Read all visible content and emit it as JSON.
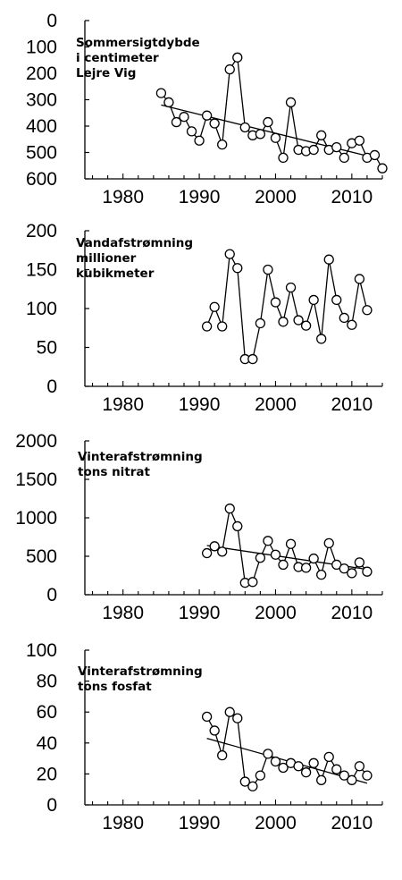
{
  "chart_data": [
    {
      "type": "scatter",
      "title": [
        "Sommersigtdybde",
        "i centimeter",
        "Lejre Vig"
      ],
      "xlim": [
        1975,
        2014
      ],
      "ylim": [
        0,
        600
      ],
      "y_inverted": true,
      "x_ticks": [
        1980,
        1990,
        2000,
        2010
      ],
      "y_ticks": [
        0,
        100,
        200,
        300,
        400,
        500,
        600
      ],
      "x": [
        1985,
        1986,
        1987,
        1988,
        1989,
        1990,
        1991,
        1992,
        1993,
        1994,
        1995,
        1996,
        1997,
        1998,
        1999,
        2000,
        2001,
        2002,
        2003,
        2004,
        2005,
        2006,
        2007,
        2008,
        2009,
        2010,
        2011,
        2012,
        2013,
        2014
      ],
      "values": [
        275,
        310,
        385,
        365,
        420,
        455,
        360,
        390,
        470,
        185,
        140,
        405,
        435,
        430,
        385,
        445,
        520,
        310,
        490,
        495,
        490,
        435,
        490,
        480,
        520,
        465,
        455,
        520,
        510,
        560
      ],
      "trend": {
        "x": [
          1985,
          2013
        ],
        "y": [
          320,
          520
        ]
      },
      "grid": false,
      "legend": "none"
    },
    {
      "type": "scatter",
      "title": [
        "Vandafstrømning",
        "millioner",
        "kubikmeter"
      ],
      "xlim": [
        1975,
        2014
      ],
      "ylim": [
        0,
        200
      ],
      "y_inverted": false,
      "x_ticks": [
        1980,
        1990,
        2000,
        2010
      ],
      "y_ticks": [
        0,
        50,
        100,
        150,
        200
      ],
      "x": [
        1991,
        1992,
        1993,
        1994,
        1995,
        1996,
        1997,
        1998,
        1999,
        2000,
        2001,
        2002,
        2003,
        2004,
        2005,
        2006,
        2007,
        2008,
        2009,
        2010,
        2011,
        2012
      ],
      "values": [
        77,
        102,
        77,
        170,
        152,
        35,
        35,
        81,
        150,
        108,
        83,
        127,
        85,
        78,
        111,
        61,
        163,
        111,
        88,
        79,
        138,
        98
      ],
      "grid": false,
      "legend": "none"
    },
    {
      "type": "scatter",
      "title": [
        "Vinterafstrømning",
        "tons nitrat"
      ],
      "xlim": [
        1975,
        2014
      ],
      "ylim": [
        0,
        2000
      ],
      "y_inverted": false,
      "x_ticks": [
        1980,
        1990,
        2000,
        2010
      ],
      "y_ticks": [
        0,
        500,
        1000,
        1500,
        2000
      ],
      "x": [
        1991,
        1992,
        1993,
        1994,
        1995,
        1996,
        1997,
        1998,
        1999,
        2000,
        2001,
        2002,
        2003,
        2004,
        2005,
        2006,
        2007,
        2008,
        2009,
        2010,
        2011,
        2012
      ],
      "values": [
        540,
        630,
        560,
        1120,
        890,
        155,
        165,
        480,
        700,
        520,
        390,
        660,
        360,
        350,
        470,
        260,
        670,
        390,
        340,
        280,
        420,
        300
      ],
      "trend": {
        "x": [
          1991,
          2012
        ],
        "y": [
          640,
          330
        ]
      },
      "grid": false,
      "legend": "none"
    },
    {
      "type": "scatter",
      "title": [
        "Vinterafstrømning",
        "tons fosfat"
      ],
      "xlim": [
        1975,
        2014
      ],
      "ylim": [
        0,
        100
      ],
      "y_inverted": false,
      "x_ticks": [
        1980,
        1990,
        2000,
        2010
      ],
      "y_ticks": [
        0,
        20,
        40,
        60,
        80,
        100
      ],
      "x": [
        1991,
        1992,
        1993,
        1994,
        1995,
        1996,
        1997,
        1998,
        1999,
        2000,
        2001,
        2002,
        2003,
        2004,
        2005,
        2006,
        2007,
        2008,
        2009,
        2010,
        2011,
        2012
      ],
      "values": [
        57,
        48,
        32,
        60,
        56,
        15,
        12,
        19,
        33,
        28,
        24,
        27,
        25,
        21,
        27,
        16,
        31,
        23,
        19,
        16,
        25,
        19
      ],
      "trend": {
        "x": [
          1991,
          2012
        ],
        "y": [
          43,
          14
        ]
      },
      "grid": false,
      "legend": "none"
    }
  ]
}
